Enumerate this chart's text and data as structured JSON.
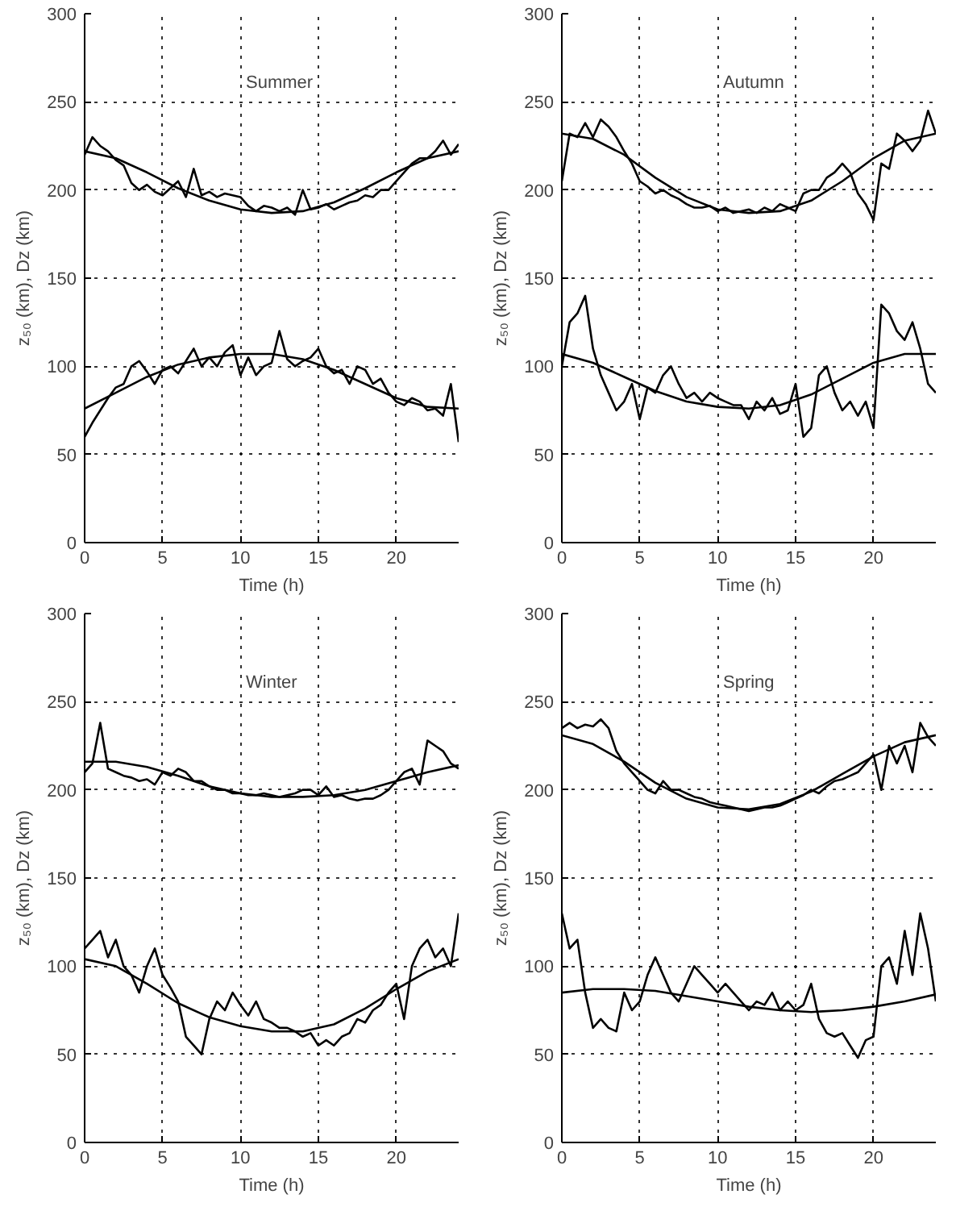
{
  "chart_data": [
    {
      "type": "line",
      "title": "Summer",
      "xlabel": "Time (h)",
      "ylabel": "z₅₀ (km), Dz (km)",
      "xlim": [
        0,
        24
      ],
      "xticks": [
        0,
        5,
        10,
        15,
        20
      ],
      "ylim": [
        0,
        300
      ],
      "yticks": [
        0,
        50,
        100,
        150,
        200,
        250,
        300
      ],
      "grid": true,
      "x": [
        0,
        0.5,
        1,
        1.5,
        2,
        2.5,
        3,
        3.5,
        4,
        4.5,
        5,
        5.5,
        6,
        6.5,
        7,
        7.5,
        8,
        8.5,
        9,
        9.5,
        10,
        10.5,
        11,
        11.5,
        12,
        12.5,
        13,
        13.5,
        14,
        14.5,
        15,
        15.5,
        16,
        16.5,
        17,
        17.5,
        18,
        18.5,
        19,
        19.5,
        20,
        20.5,
        21,
        21.5,
        22,
        22.5,
        23,
        23.5,
        24
      ],
      "series": [
        {
          "color": "#000000",
          "values": [
            220,
            230,
            225,
            222,
            217,
            214,
            204,
            200,
            203,
            199,
            197,
            201,
            205,
            196,
            212,
            197,
            199,
            196,
            198,
            197,
            196,
            191,
            188,
            191,
            190,
            188,
            190,
            186,
            200,
            189,
            190,
            192,
            189,
            191,
            193,
            194,
            197,
            196,
            200,
            200,
            205,
            210,
            215,
            218,
            218,
            222,
            228,
            220,
            226
          ]
        },
        {
          "color": "#000000",
          "x": [
            0,
            2,
            4,
            6,
            8,
            10,
            12,
            14,
            16,
            18,
            20,
            22,
            24
          ],
          "values": [
            222,
            218,
            210,
            201,
            194,
            189,
            187,
            188,
            193,
            201,
            210,
            218,
            222
          ]
        },
        {
          "color": "#000000",
          "values": [
            60,
            68,
            75,
            82,
            88,
            90,
            100,
            103,
            97,
            90,
            98,
            100,
            96,
            103,
            110,
            100,
            105,
            100,
            108,
            112,
            95,
            105,
            95,
            100,
            102,
            120,
            104,
            100,
            103,
            105,
            110,
            100,
            96,
            98,
            90,
            100,
            98,
            90,
            93,
            85,
            80,
            78,
            82,
            80,
            75,
            76,
            72,
            90,
            57
          ]
        },
        {
          "color": "#000000",
          "x": [
            0,
            2,
            4,
            6,
            8,
            10,
            12,
            14,
            16,
            18,
            20,
            22,
            24
          ],
          "values": [
            76,
            85,
            94,
            101,
            105,
            107,
            107,
            104,
            98,
            90,
            82,
            77,
            76
          ]
        }
      ]
    },
    {
      "type": "line",
      "title": "Autumn",
      "xlabel": "Time (h)",
      "ylabel": "z₅₀ (km), Dz (km)",
      "xlim": [
        0,
        24
      ],
      "xticks": [
        0,
        5,
        10,
        15,
        20
      ],
      "ylim": [
        0,
        300
      ],
      "yticks": [
        0,
        50,
        100,
        150,
        200,
        250,
        300
      ],
      "grid": true,
      "x": [
        0,
        0.5,
        1,
        1.5,
        2,
        2.5,
        3,
        3.5,
        4,
        4.5,
        5,
        5.5,
        6,
        6.5,
        7,
        7.5,
        8,
        8.5,
        9,
        9.5,
        10,
        10.5,
        11,
        11.5,
        12,
        12.5,
        13,
        13.5,
        14,
        14.5,
        15,
        15.5,
        16,
        16.5,
        17,
        17.5,
        18,
        18.5,
        19,
        19.5,
        20,
        20.5,
        21,
        21.5,
        22,
        22.5,
        23,
        23.5,
        24
      ],
      "series": [
        {
          "color": "#000000",
          "values": [
            205,
            232,
            230,
            238,
            230,
            240,
            236,
            230,
            222,
            215,
            205,
            202,
            198,
            200,
            197,
            195,
            192,
            190,
            190,
            191,
            188,
            190,
            187,
            188,
            189,
            187,
            190,
            188,
            192,
            190,
            188,
            198,
            200,
            200,
            207,
            210,
            215,
            210,
            198,
            192,
            183,
            215,
            212,
            232,
            228,
            222,
            228,
            245,
            232
          ]
        },
        {
          "color": "#000000",
          "x": [
            0,
            2,
            4,
            6,
            8,
            10,
            12,
            14,
            16,
            18,
            20,
            22,
            24
          ],
          "values": [
            232,
            229,
            220,
            207,
            196,
            189,
            187,
            188,
            194,
            205,
            218,
            228,
            232
          ]
        },
        {
          "color": "#000000",
          "values": [
            100,
            125,
            130,
            140,
            110,
            95,
            85,
            75,
            80,
            90,
            70,
            88,
            85,
            95,
            100,
            90,
            82,
            85,
            80,
            85,
            82,
            80,
            78,
            78,
            70,
            80,
            75,
            82,
            73,
            75,
            90,
            60,
            65,
            95,
            100,
            85,
            75,
            80,
            72,
            80,
            65,
            135,
            130,
            120,
            115,
            125,
            110,
            90,
            85
          ]
        },
        {
          "color": "#000000",
          "x": [
            0,
            2,
            4,
            6,
            8,
            10,
            12,
            14,
            16,
            18,
            20,
            22,
            24
          ],
          "values": [
            107,
            102,
            94,
            86,
            80,
            77,
            76,
            78,
            84,
            93,
            102,
            107,
            107
          ]
        }
      ]
    },
    {
      "type": "line",
      "title": "Winter",
      "xlabel": "Time (h)",
      "ylabel": "z₅₀ (km), Dz (km)",
      "xlim": [
        0,
        24
      ],
      "xticks": [
        0,
        5,
        10,
        15,
        20
      ],
      "ylim": [
        0,
        300
      ],
      "yticks": [
        0,
        50,
        100,
        150,
        200,
        250,
        300
      ],
      "grid": true,
      "x": [
        0,
        0.5,
        1,
        1.5,
        2,
        2.5,
        3,
        3.5,
        4,
        4.5,
        5,
        5.5,
        6,
        6.5,
        7,
        7.5,
        8,
        8.5,
        9,
        9.5,
        10,
        10.5,
        11,
        11.5,
        12,
        12.5,
        13,
        13.5,
        14,
        14.5,
        15,
        15.5,
        16,
        16.5,
        17,
        17.5,
        18,
        18.5,
        19,
        19.5,
        20,
        20.5,
        21,
        21.5,
        22,
        22.5,
        23,
        23.5,
        24
      ],
      "series": [
        {
          "color": "#000000",
          "values": [
            210,
            215,
            238,
            212,
            210,
            208,
            207,
            205,
            206,
            203,
            210,
            208,
            212,
            210,
            205,
            205,
            202,
            200,
            200,
            198,
            198,
            197,
            197,
            198,
            197,
            196,
            197,
            198,
            200,
            200,
            197,
            202,
            196,
            197,
            195,
            194,
            195,
            195,
            197,
            200,
            205,
            210,
            212,
            203,
            228,
            225,
            222,
            215,
            212
          ]
        },
        {
          "color": "#000000",
          "x": [
            0,
            2,
            4,
            6,
            8,
            10,
            12,
            14,
            16,
            18,
            20,
            22,
            24
          ],
          "values": [
            216,
            216,
            213,
            208,
            202,
            198,
            196,
            196,
            197,
            200,
            205,
            210,
            214
          ]
        },
        {
          "color": "#000000",
          "values": [
            110,
            115,
            120,
            105,
            115,
            100,
            95,
            85,
            100,
            110,
            95,
            88,
            80,
            60,
            55,
            50,
            70,
            80,
            75,
            85,
            78,
            72,
            80,
            70,
            68,
            65,
            65,
            63,
            60,
            62,
            55,
            58,
            55,
            60,
            62,
            70,
            68,
            75,
            78,
            85,
            90,
            70,
            100,
            110,
            115,
            105,
            110,
            100,
            130
          ]
        },
        {
          "color": "#000000",
          "x": [
            0,
            2,
            4,
            6,
            8,
            10,
            12,
            14,
            16,
            18,
            20,
            22,
            24
          ],
          "values": [
            104,
            100,
            90,
            79,
            71,
            66,
            63,
            63,
            67,
            76,
            87,
            97,
            104
          ]
        }
      ]
    },
    {
      "type": "line",
      "title": "Spring",
      "xlabel": "Time (h)",
      "ylabel": "z₅₀ (km), Dz (km)",
      "xlim": [
        0,
        24
      ],
      "xticks": [
        0,
        5,
        10,
        15,
        20
      ],
      "ylim": [
        0,
        300
      ],
      "yticks": [
        0,
        50,
        100,
        150,
        200,
        250,
        300
      ],
      "grid": true,
      "x": [
        0,
        0.5,
        1,
        1.5,
        2,
        2.5,
        3,
        3.5,
        4,
        4.5,
        5,
        5.5,
        6,
        6.5,
        7,
        7.5,
        8,
        8.5,
        9,
        9.5,
        10,
        10.5,
        11,
        11.5,
        12,
        12.5,
        13,
        13.5,
        14,
        14.5,
        15,
        15.5,
        16,
        16.5,
        17,
        17.5,
        18,
        18.5,
        19,
        19.5,
        20,
        20.5,
        21,
        21.5,
        22,
        22.5,
        23,
        23.5,
        24
      ],
      "series": [
        {
          "color": "#000000",
          "values": [
            235,
            238,
            235,
            237,
            236,
            240,
            235,
            222,
            215,
            210,
            205,
            200,
            198,
            205,
            200,
            200,
            198,
            196,
            195,
            193,
            192,
            191,
            190,
            189,
            188,
            189,
            190,
            190,
            191,
            193,
            195,
            197,
            200,
            198,
            202,
            205,
            206,
            208,
            210,
            215,
            220,
            200,
            225,
            215,
            225,
            210,
            238,
            230,
            225
          ]
        },
        {
          "color": "#000000",
          "x": [
            0,
            2,
            4,
            6,
            8,
            10,
            12,
            14,
            16,
            18,
            20,
            22,
            24
          ],
          "values": [
            231,
            226,
            216,
            204,
            195,
            190,
            189,
            192,
            199,
            209,
            219,
            227,
            231
          ]
        },
        {
          "color": "#000000",
          "values": [
            130,
            110,
            115,
            85,
            65,
            70,
            65,
            63,
            85,
            75,
            80,
            95,
            105,
            95,
            85,
            80,
            90,
            100,
            95,
            90,
            85,
            90,
            85,
            80,
            75,
            80,
            78,
            85,
            75,
            80,
            75,
            78,
            90,
            70,
            62,
            60,
            62,
            55,
            48,
            58,
            60,
            100,
            105,
            90,
            120,
            95,
            130,
            110,
            80
          ]
        },
        {
          "color": "#000000",
          "x": [
            0,
            2,
            4,
            6,
            8,
            10,
            12,
            14,
            16,
            18,
            20,
            22,
            24
          ],
          "values": [
            85,
            87,
            87,
            86,
            83,
            80,
            77,
            75,
            74,
            75,
            77,
            80,
            84
          ]
        }
      ]
    }
  ]
}
